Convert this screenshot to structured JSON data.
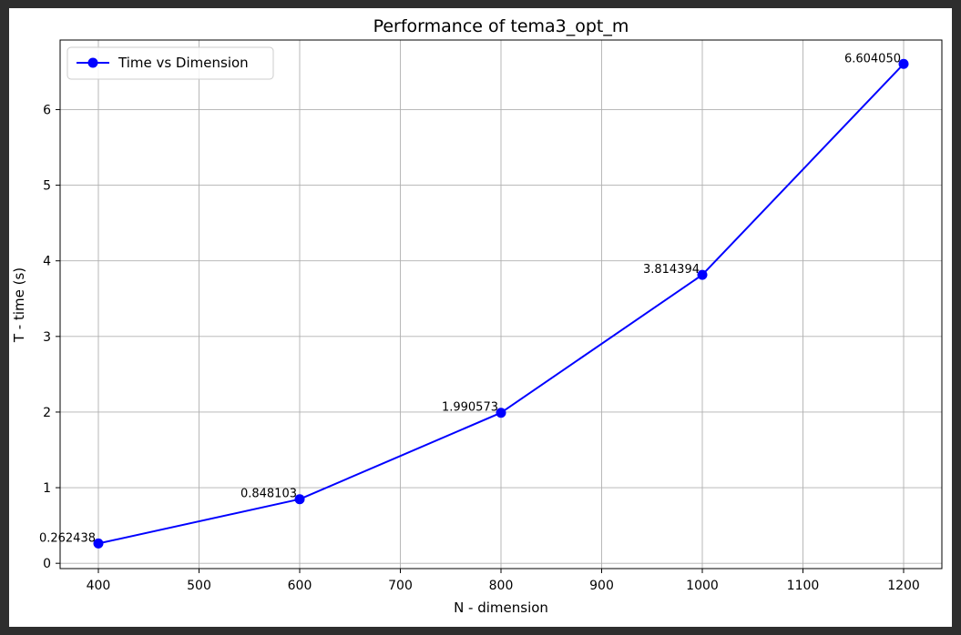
{
  "chart_data": {
    "type": "line",
    "title": "Performance of tema3_opt_m",
    "xlabel": "N - dimension",
    "ylabel": "T - time (s)",
    "x": [
      400,
      600,
      800,
      1000,
      1200
    ],
    "series": [
      {
        "name": "Time vs Dimension",
        "values": [
          0.262438,
          0.848103,
          1.990573,
          3.814394,
          6.60405
        ],
        "labels": [
          "0.262438",
          "0.848103",
          "1.990573",
          "3.814394",
          "6.604050"
        ],
        "color": "#0000ff",
        "marker": "circle"
      }
    ],
    "xlim": [
      362,
      1238
    ],
    "ylim": [
      -0.07,
      6.92
    ],
    "xticks": [
      "400",
      "500",
      "600",
      "700",
      "800",
      "900",
      "1000",
      "1100",
      "1200"
    ],
    "yticks": [
      "0",
      "1",
      "2",
      "3",
      "4",
      "5",
      "6"
    ],
    "grid": true,
    "legend_position": "top-left"
  }
}
